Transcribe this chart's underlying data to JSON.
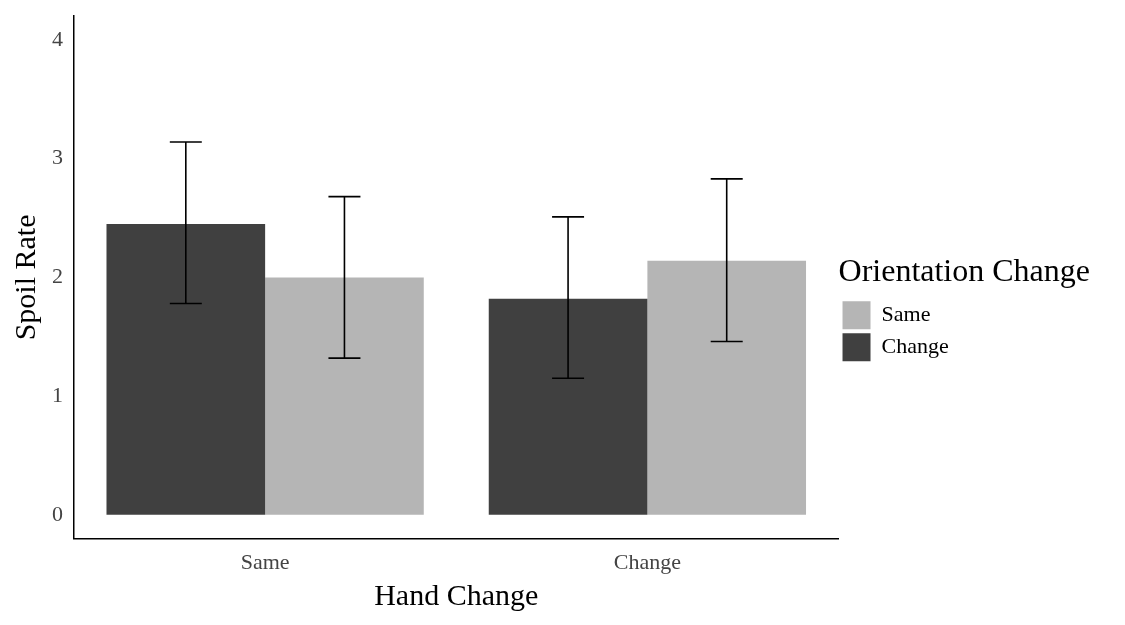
{
  "chart_data": {
    "type": "bar",
    "xlabel": "Hand Change",
    "ylabel": "Spoil Rate",
    "legend_title": "Orientation Change",
    "categories": [
      "Same",
      "Change"
    ],
    "series": [
      {
        "name": "Change",
        "color": "#404040",
        "values": [
          2.45,
          1.82
        ],
        "errors": [
          [
            1.78,
            3.14
          ],
          [
            1.15,
            2.51
          ]
        ]
      },
      {
        "name": "Same",
        "color": "#b5b5b5",
        "values": [
          2.0,
          2.14
        ],
        "errors": [
          [
            1.32,
            2.68
          ],
          [
            1.46,
            2.83
          ]
        ]
      }
    ],
    "ylim": [
      -0.2,
      4.2
    ],
    "yticks": [
      0,
      1,
      2,
      3,
      4
    ],
    "grid": false,
    "legend": "right"
  }
}
